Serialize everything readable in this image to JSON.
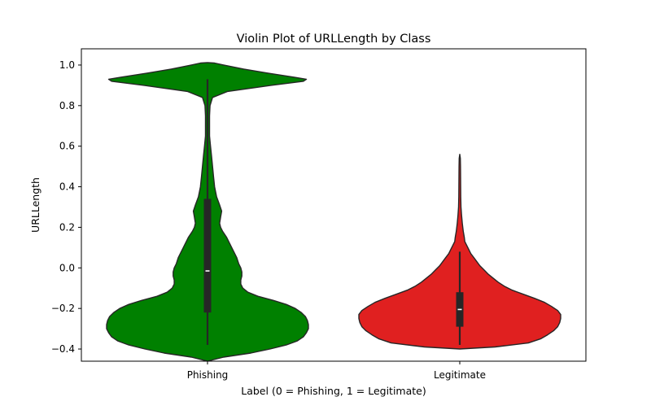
{
  "chart_data": {
    "type": "violin",
    "title": "Violin Plot of URLLength by Class",
    "xlabel": "Label (0 = Phishing, 1 = Legitimate)",
    "ylabel": "URLLength",
    "categories": [
      "Phishing",
      "Legitimate"
    ],
    "ylim": [
      -0.46,
      1.08
    ],
    "yticks": [
      -0.4,
      -0.2,
      0.0,
      0.2,
      0.4,
      0.6,
      0.8,
      1.0
    ],
    "ytick_labels": [
      "−0.4",
      "−0.2",
      "0.0",
      "0.2",
      "0.4",
      "0.6",
      "0.8",
      "1.0"
    ],
    "grid": false,
    "series": [
      {
        "category": "Phishing",
        "color": "#008000",
        "box": {
          "q1": -0.22,
          "median": -0.015,
          "q3": 0.34,
          "whisker_low": -0.38,
          "whisker_high": 0.93
        },
        "profile": [
          [
            -0.46,
            0.0
          ],
          [
            -0.44,
            0.16
          ],
          [
            -0.42,
            0.43
          ],
          [
            -0.4,
            0.62
          ],
          [
            -0.38,
            0.78
          ],
          [
            -0.36,
            0.89
          ],
          [
            -0.34,
            0.95
          ],
          [
            -0.32,
            0.98
          ],
          [
            -0.3,
            1.0
          ],
          [
            -0.28,
            1.0
          ],
          [
            -0.26,
            0.99
          ],
          [
            -0.24,
            0.97
          ],
          [
            -0.22,
            0.93
          ],
          [
            -0.2,
            0.87
          ],
          [
            -0.18,
            0.78
          ],
          [
            -0.16,
            0.65
          ],
          [
            -0.14,
            0.5
          ],
          [
            -0.12,
            0.4
          ],
          [
            -0.1,
            0.35
          ],
          [
            -0.08,
            0.33
          ],
          [
            -0.06,
            0.33
          ],
          [
            -0.04,
            0.34
          ],
          [
            -0.02,
            0.34
          ],
          [
            0.0,
            0.33
          ],
          [
            0.02,
            0.31
          ],
          [
            0.05,
            0.29
          ],
          [
            0.1,
            0.24
          ],
          [
            0.15,
            0.19
          ],
          [
            0.18,
            0.15
          ],
          [
            0.2,
            0.13
          ],
          [
            0.22,
            0.12
          ],
          [
            0.25,
            0.13
          ],
          [
            0.28,
            0.14
          ],
          [
            0.31,
            0.12
          ],
          [
            0.35,
            0.09
          ],
          [
            0.4,
            0.07
          ],
          [
            0.45,
            0.06
          ],
          [
            0.5,
            0.05
          ],
          [
            0.55,
            0.04
          ],
          [
            0.6,
            0.03
          ],
          [
            0.65,
            0.02
          ],
          [
            0.7,
            0.02
          ],
          [
            0.75,
            0.02
          ],
          [
            0.8,
            0.025
          ],
          [
            0.84,
            0.05
          ],
          [
            0.87,
            0.2
          ],
          [
            0.9,
            0.63
          ],
          [
            0.92,
            0.95
          ],
          [
            0.93,
            0.98
          ],
          [
            0.94,
            0.86
          ],
          [
            0.96,
            0.6
          ],
          [
            0.98,
            0.36
          ],
          [
            1.0,
            0.16
          ],
          [
            1.01,
            0.07
          ],
          [
            1.012,
            0.0
          ]
        ]
      },
      {
        "category": "Legitimate",
        "color": "#e02020",
        "box": {
          "q1": -0.29,
          "median": -0.205,
          "q3": -0.12,
          "whisker_low": -0.38,
          "whisker_high": 0.08
        },
        "profile": [
          [
            -0.4,
            0.0
          ],
          [
            -0.39,
            0.35
          ],
          [
            -0.37,
            0.68
          ],
          [
            -0.35,
            0.8
          ],
          [
            -0.33,
            0.87
          ],
          [
            -0.31,
            0.93
          ],
          [
            -0.29,
            0.97
          ],
          [
            -0.27,
            0.99
          ],
          [
            -0.25,
            1.0
          ],
          [
            -0.23,
            1.0
          ],
          [
            -0.21,
            0.97
          ],
          [
            -0.19,
            0.91
          ],
          [
            -0.17,
            0.84
          ],
          [
            -0.15,
            0.74
          ],
          [
            -0.13,
            0.63
          ],
          [
            -0.11,
            0.52
          ],
          [
            -0.09,
            0.44
          ],
          [
            -0.07,
            0.38
          ],
          [
            -0.05,
            0.33
          ],
          [
            -0.03,
            0.28
          ],
          [
            -0.01,
            0.24
          ],
          [
            0.01,
            0.2
          ],
          [
            0.03,
            0.17
          ],
          [
            0.05,
            0.14
          ],
          [
            0.07,
            0.11
          ],
          [
            0.09,
            0.09
          ],
          [
            0.11,
            0.07
          ],
          [
            0.13,
            0.05
          ],
          [
            0.15,
            0.045
          ],
          [
            0.18,
            0.035
          ],
          [
            0.22,
            0.025
          ],
          [
            0.26,
            0.018
          ],
          [
            0.3,
            0.012
          ],
          [
            0.35,
            0.01
          ],
          [
            0.4,
            0.009
          ],
          [
            0.45,
            0.008
          ],
          [
            0.5,
            0.007
          ],
          [
            0.54,
            0.006
          ],
          [
            0.56,
            0.0
          ]
        ]
      }
    ]
  }
}
